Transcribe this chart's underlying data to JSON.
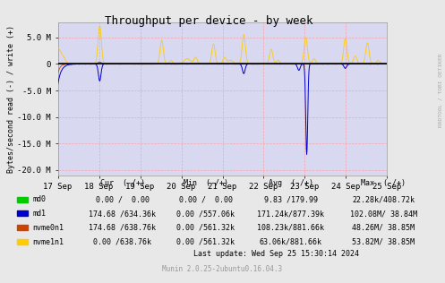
{
  "title": "Throughput per device - by week",
  "ylabel": "Bytes/second read (-) / write (+)",
  "xlabel_dates": [
    "17 Sep",
    "18 Sep",
    "19 Sep",
    "20 Sep",
    "21 Sep",
    "22 Sep",
    "23 Sep",
    "24 Sep",
    "25 Sep"
  ],
  "xlim": [
    0,
    8
  ],
  "ylim": [
    -21000000,
    7800000
  ],
  "yticks": [
    -20000000,
    -15000000,
    -10000000,
    -5000000,
    0,
    5000000
  ],
  "ytick_labels": [
    "-20.0 M",
    "-15.0 M",
    "-10.0 M",
    "-5.0 M",
    "0",
    "5.0 M"
  ],
  "background_color": "#e8e8e8",
  "plot_bg_color": "#d8d8f0",
  "grid_color": "#ff9999",
  "series_colors": {
    "md0": "#00cc00",
    "md1": "#0000cc",
    "nvme0n1": "#cc4400",
    "nvme1n1": "#ffcc00"
  },
  "right_label": "RRDTOOL / TOBI OETIKER",
  "col_header": [
    "Cur  (-/+)",
    "Min  (-/+)",
    "Avg  (-/+)",
    "Max  (-/+)"
  ],
  "legend_entries": [
    {
      "name": "md0",
      "cur": "0.00 /  0.00",
      "min": "0.00 /  0.00",
      "avg": "9.83 /179.99",
      "max": "22.28k/408.72k",
      "color": "#00cc00"
    },
    {
      "name": "md1",
      "cur": "174.68 /634.36k",
      "min": "0.00 /557.06k",
      "avg": "171.24k/877.39k",
      "max": "102.08M/ 38.84M",
      "color": "#0000cc"
    },
    {
      "name": "nvme0n1",
      "cur": "174.68 /638.76k",
      "min": "0.00 /561.32k",
      "avg": "108.23k/881.66k",
      "max": "48.26M/ 38.85M",
      "color": "#cc4400"
    },
    {
      "name": "nvme1n1",
      "cur": "0.00 /638.76k",
      "min": "0.00 /561.32k",
      "avg": "63.06k/881.66k",
      "max": "53.82M/ 38.85M",
      "color": "#ffcc00"
    }
  ],
  "footer": "Last update: Wed Sep 25 15:30:14 2024",
  "munin_version": "Munin 2.0.25-2ubuntu0.16.04.3"
}
